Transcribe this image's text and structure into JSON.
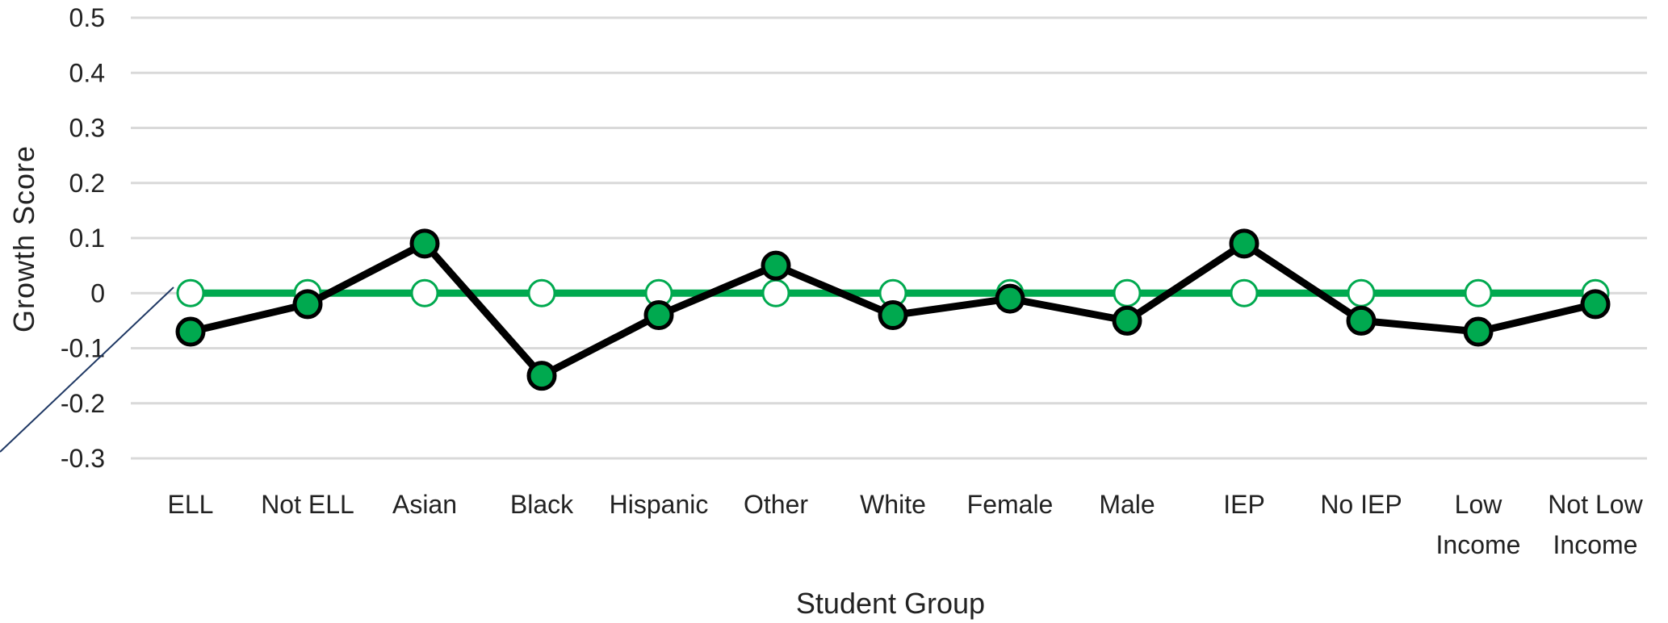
{
  "chart_data": {
    "type": "line",
    "title": "",
    "xlabel": "Student Group",
    "ylabel": "Growth Score",
    "ylim": [
      -0.3,
      0.5
    ],
    "yticks": [
      "0.5",
      "0.4",
      "0.3",
      "0.2",
      "0.1",
      "0",
      "-0.1",
      "-0.2",
      "-0.3"
    ],
    "ytick_values": [
      0.5,
      0.4,
      0.3,
      0.2,
      0.1,
      0,
      -0.1,
      -0.2,
      -0.3
    ],
    "grid": true,
    "legend": "none",
    "categories": [
      [
        "ELL"
      ],
      [
        "Not ELL"
      ],
      [
        "Asian"
      ],
      [
        "Black"
      ],
      [
        "Hispanic"
      ],
      [
        "Other"
      ],
      [
        "White"
      ],
      [
        "Female"
      ],
      [
        "Male"
      ],
      [
        "IEP"
      ],
      [
        "No IEP"
      ],
      [
        "Low",
        "Income"
      ],
      [
        "Not Low",
        "Income"
      ]
    ],
    "series": [
      {
        "values": [
          0,
          0,
          0,
          0,
          0,
          0,
          0,
          0,
          0,
          0,
          0,
          0,
          0
        ],
        "color": "#00A94F",
        "marker": "open-circle"
      },
      {
        "values": [
          -0.07,
          -0.02,
          0.09,
          -0.15,
          -0.04,
          0.05,
          -0.04,
          -0.01,
          -0.05,
          0.09,
          -0.05,
          -0.07,
          -0.02
        ],
        "color": "#000000",
        "marker_fill": "#00A94F",
        "marker": "filled-circle"
      }
    ]
  }
}
